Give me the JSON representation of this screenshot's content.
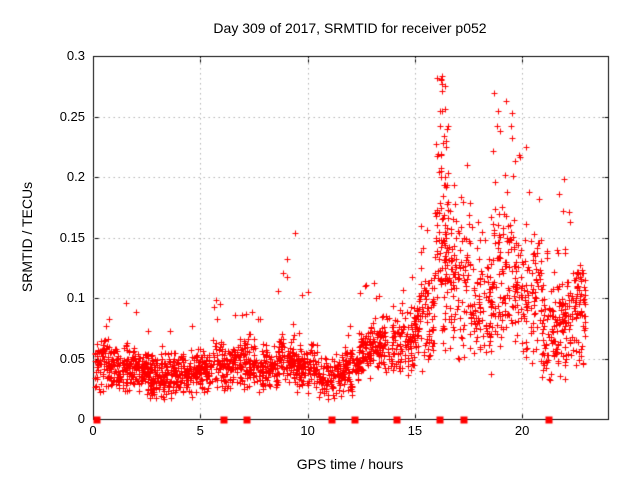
{
  "chart_data": {
    "type": "scatter",
    "title": "Day 309 of 2017, SRMTID for receiver p052",
    "xlabel": "GPS time / hours",
    "ylabel": "SRMTID / TECUs",
    "xlim": [
      0,
      24
    ],
    "ylim": [
      0,
      0.3
    ],
    "xticks": [
      {
        "v": 0,
        "label": "0"
      },
      {
        "v": 5,
        "label": "5"
      },
      {
        "v": 10,
        "label": "10"
      },
      {
        "v": 15,
        "label": "15"
      },
      {
        "v": 20,
        "label": "20"
      }
    ],
    "yticks": [
      {
        "v": 0,
        "label": "0"
      },
      {
        "v": 0.05,
        "label": "0.05"
      },
      {
        "v": 0.1,
        "label": "0.1"
      },
      {
        "v": 0.15,
        "label": "0.15"
      },
      {
        "v": 0.2,
        "label": "0.2"
      },
      {
        "v": 0.25,
        "label": "0.25"
      },
      {
        "v": 0.3,
        "label": "0.3"
      }
    ],
    "grid": {
      "show": true,
      "style": "dotted",
      "color": "#b3b3b3",
      "at_xticks": [
        5,
        10,
        15,
        20
      ],
      "at_yticks": [
        0.05,
        0.1,
        0.15,
        0.2,
        0.25
      ]
    },
    "legend": "none",
    "marker": {
      "shape": "plus",
      "size": 7,
      "color": "#ff0000"
    },
    "zero_marker": {
      "shape": "filled-square",
      "size": 7,
      "color": "#ff0000"
    },
    "zero_marker_hours": [
      0.12,
      6.05,
      7.13,
      11.08,
      12.17,
      14.11,
      16.12,
      17.24,
      21.21
    ],
    "series_name": "SRMTID",
    "seed": 309,
    "distribution_bands": [
      {
        "t0": 0.08,
        "t1": 0.6,
        "n": 55,
        "y_mode": 0.048,
        "y_spread": 0.02,
        "y_min": 0.022,
        "y_max": 0.095,
        "tail_p": 0.04
      },
      {
        "t0": 0.6,
        "t1": 1.6,
        "n": 115,
        "y_mode": 0.044,
        "y_spread": 0.017,
        "y_min": 0.02,
        "y_max": 0.1,
        "tail_p": 0.03
      },
      {
        "t0": 1.6,
        "t1": 2.6,
        "n": 115,
        "y_mode": 0.04,
        "y_spread": 0.016,
        "y_min": 0.016,
        "y_max": 0.095,
        "tail_p": 0.03
      },
      {
        "t0": 2.6,
        "t1": 3.6,
        "n": 115,
        "y_mode": 0.036,
        "y_spread": 0.015,
        "y_min": 0.012,
        "y_max": 0.08,
        "tail_p": 0.03
      },
      {
        "t0": 3.6,
        "t1": 4.6,
        "n": 110,
        "y_mode": 0.038,
        "y_spread": 0.015,
        "y_min": 0.014,
        "y_max": 0.09,
        "tail_p": 0.03
      },
      {
        "t0": 4.6,
        "t1": 5.6,
        "n": 105,
        "y_mode": 0.042,
        "y_spread": 0.016,
        "y_min": 0.016,
        "y_max": 0.085,
        "tail_p": 0.03
      },
      {
        "t0": 5.6,
        "t1": 6.6,
        "n": 105,
        "y_mode": 0.045,
        "y_spread": 0.017,
        "y_min": 0.018,
        "y_max": 0.1,
        "tail_p": 0.04
      },
      {
        "t0": 6.6,
        "t1": 7.6,
        "n": 105,
        "y_mode": 0.048,
        "y_spread": 0.018,
        "y_min": 0.02,
        "y_max": 0.105,
        "tail_p": 0.05
      },
      {
        "t0": 7.6,
        "t1": 8.6,
        "n": 100,
        "y_mode": 0.042,
        "y_spread": 0.016,
        "y_min": 0.016,
        "y_max": 0.085,
        "tail_p": 0.03
      },
      {
        "t0": 8.6,
        "t1": 9.45,
        "n": 100,
        "y_mode": 0.05,
        "y_spread": 0.018,
        "y_min": 0.02,
        "y_max": 0.155,
        "tail_p": 0.06
      },
      {
        "t0": 9.45,
        "t1": 10.5,
        "n": 105,
        "y_mode": 0.042,
        "y_spread": 0.017,
        "y_min": 0.014,
        "y_max": 0.11,
        "tail_p": 0.04
      },
      {
        "t0": 10.5,
        "t1": 11.6,
        "n": 100,
        "y_mode": 0.034,
        "y_spread": 0.015,
        "y_min": 0.012,
        "y_max": 0.07,
        "tail_p": 0.03
      },
      {
        "t0": 11.6,
        "t1": 12.4,
        "n": 85,
        "y_mode": 0.04,
        "y_spread": 0.016,
        "y_min": 0.014,
        "y_max": 0.08,
        "tail_p": 0.03
      },
      {
        "t0": 12.4,
        "t1": 13.1,
        "n": 80,
        "y_mode": 0.055,
        "y_spread": 0.02,
        "y_min": 0.02,
        "y_max": 0.13,
        "tail_p": 0.07
      },
      {
        "t0": 13.1,
        "t1": 14.1,
        "n": 95,
        "y_mode": 0.06,
        "y_spread": 0.021,
        "y_min": 0.024,
        "y_max": 0.115,
        "tail_p": 0.05
      },
      {
        "t0": 14.1,
        "t1": 15.1,
        "n": 95,
        "y_mode": 0.063,
        "y_spread": 0.023,
        "y_min": 0.025,
        "y_max": 0.125,
        "tail_p": 0.06
      },
      {
        "t0": 15.1,
        "t1": 15.9,
        "n": 85,
        "y_mode": 0.08,
        "y_spread": 0.032,
        "y_min": 0.03,
        "y_max": 0.16,
        "tail_p": 0.1
      },
      {
        "t0": 15.9,
        "t1": 16.6,
        "n": 115,
        "y_mode": 0.13,
        "y_spread": 0.06,
        "y_min": 0.05,
        "y_max": 0.285,
        "tail_p": 0.35
      },
      {
        "t0": 16.6,
        "t1": 17.6,
        "n": 105,
        "y_mode": 0.11,
        "y_spread": 0.05,
        "y_min": 0.04,
        "y_max": 0.21,
        "tail_p": 0.18
      },
      {
        "t0": 17.6,
        "t1": 18.6,
        "n": 95,
        "y_mode": 0.09,
        "y_spread": 0.04,
        "y_min": 0.035,
        "y_max": 0.17,
        "tail_p": 0.12
      },
      {
        "t0": 18.6,
        "t1": 19.6,
        "n": 110,
        "y_mode": 0.12,
        "y_spread": 0.055,
        "y_min": 0.04,
        "y_max": 0.27,
        "tail_p": 0.22
      },
      {
        "t0": 19.6,
        "t1": 20.9,
        "n": 125,
        "y_mode": 0.1,
        "y_spread": 0.045,
        "y_min": 0.04,
        "y_max": 0.23,
        "tail_p": 0.16
      },
      {
        "t0": 20.9,
        "t1": 21.6,
        "n": 75,
        "y_mode": 0.07,
        "y_spread": 0.03,
        "y_min": 0.03,
        "y_max": 0.15,
        "tail_p": 0.08
      },
      {
        "t0": 21.6,
        "t1": 22.3,
        "n": 80,
        "y_mode": 0.08,
        "y_spread": 0.035,
        "y_min": 0.03,
        "y_max": 0.2,
        "tail_p": 0.1
      },
      {
        "t0": 22.3,
        "t1": 22.95,
        "n": 75,
        "y_mode": 0.09,
        "y_spread": 0.035,
        "y_min": 0.04,
        "y_max": 0.13,
        "tail_p": 0.06
      }
    ],
    "colors": {
      "axis": "#000000",
      "background": "#ffffff",
      "points": "#ff0000",
      "grid": "#b3b3b3"
    }
  }
}
